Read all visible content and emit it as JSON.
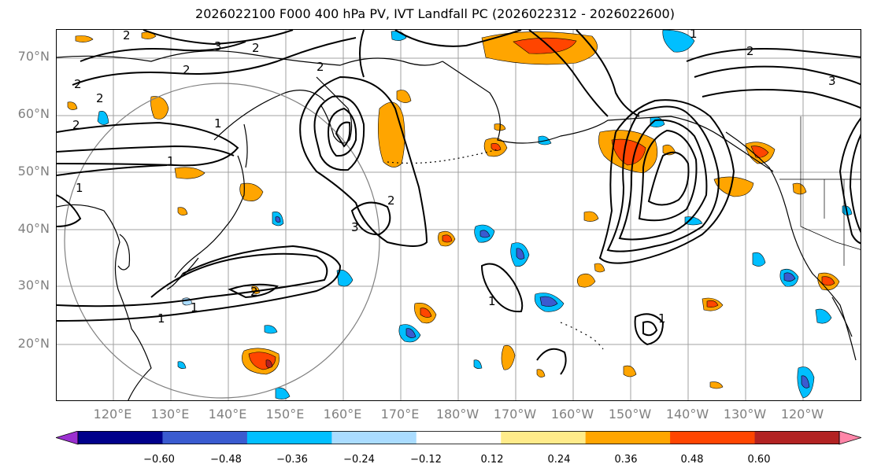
{
  "title": "2026022100 F000 400 hPa PV, IVT Landfall PC (2026022312 - 2026022600)",
  "lat_labels": [
    "70°N",
    "60°N",
    "50°N",
    "40°N",
    "30°N",
    "20°N"
  ],
  "lon_labels": [
    "120°E",
    "130°E",
    "140°E",
    "150°E",
    "160°E",
    "170°E",
    "180°W",
    "170°W",
    "160°W",
    "150°W",
    "140°W",
    "130°W",
    "120°W"
  ],
  "map_extent": {
    "lon_min": 112,
    "lon_max": 253,
    "lat_min": 10,
    "lat_max": 75
  },
  "pv_contour_labels": [
    "2",
    "3",
    "2",
    "2",
    "2",
    "2",
    "1",
    "1",
    "1",
    "2",
    "2",
    "1",
    "1",
    "1",
    "2",
    "1",
    "2",
    "3",
    "2",
    "3",
    "1"
  ],
  "colorbar": {
    "colors": [
      "#9b30d0",
      "#00008b",
      "#3a5bd0",
      "#00bfff",
      "#aadcff",
      "#ffffff",
      "#ffeb8a",
      "#ffa500",
      "#ff4500",
      "#b22222",
      "#ff85a8"
    ],
    "tick_labels": [
      "−0.60",
      "−0.48",
      "−0.36",
      "−0.24",
      "−0.12",
      "0.12",
      "0.24",
      "0.36",
      "0.48",
      "0.60"
    ]
  },
  "colors": {
    "grid": "#a0a0a0",
    "coast": "#000000",
    "circle": "#808080",
    "contour": "#000000"
  }
}
